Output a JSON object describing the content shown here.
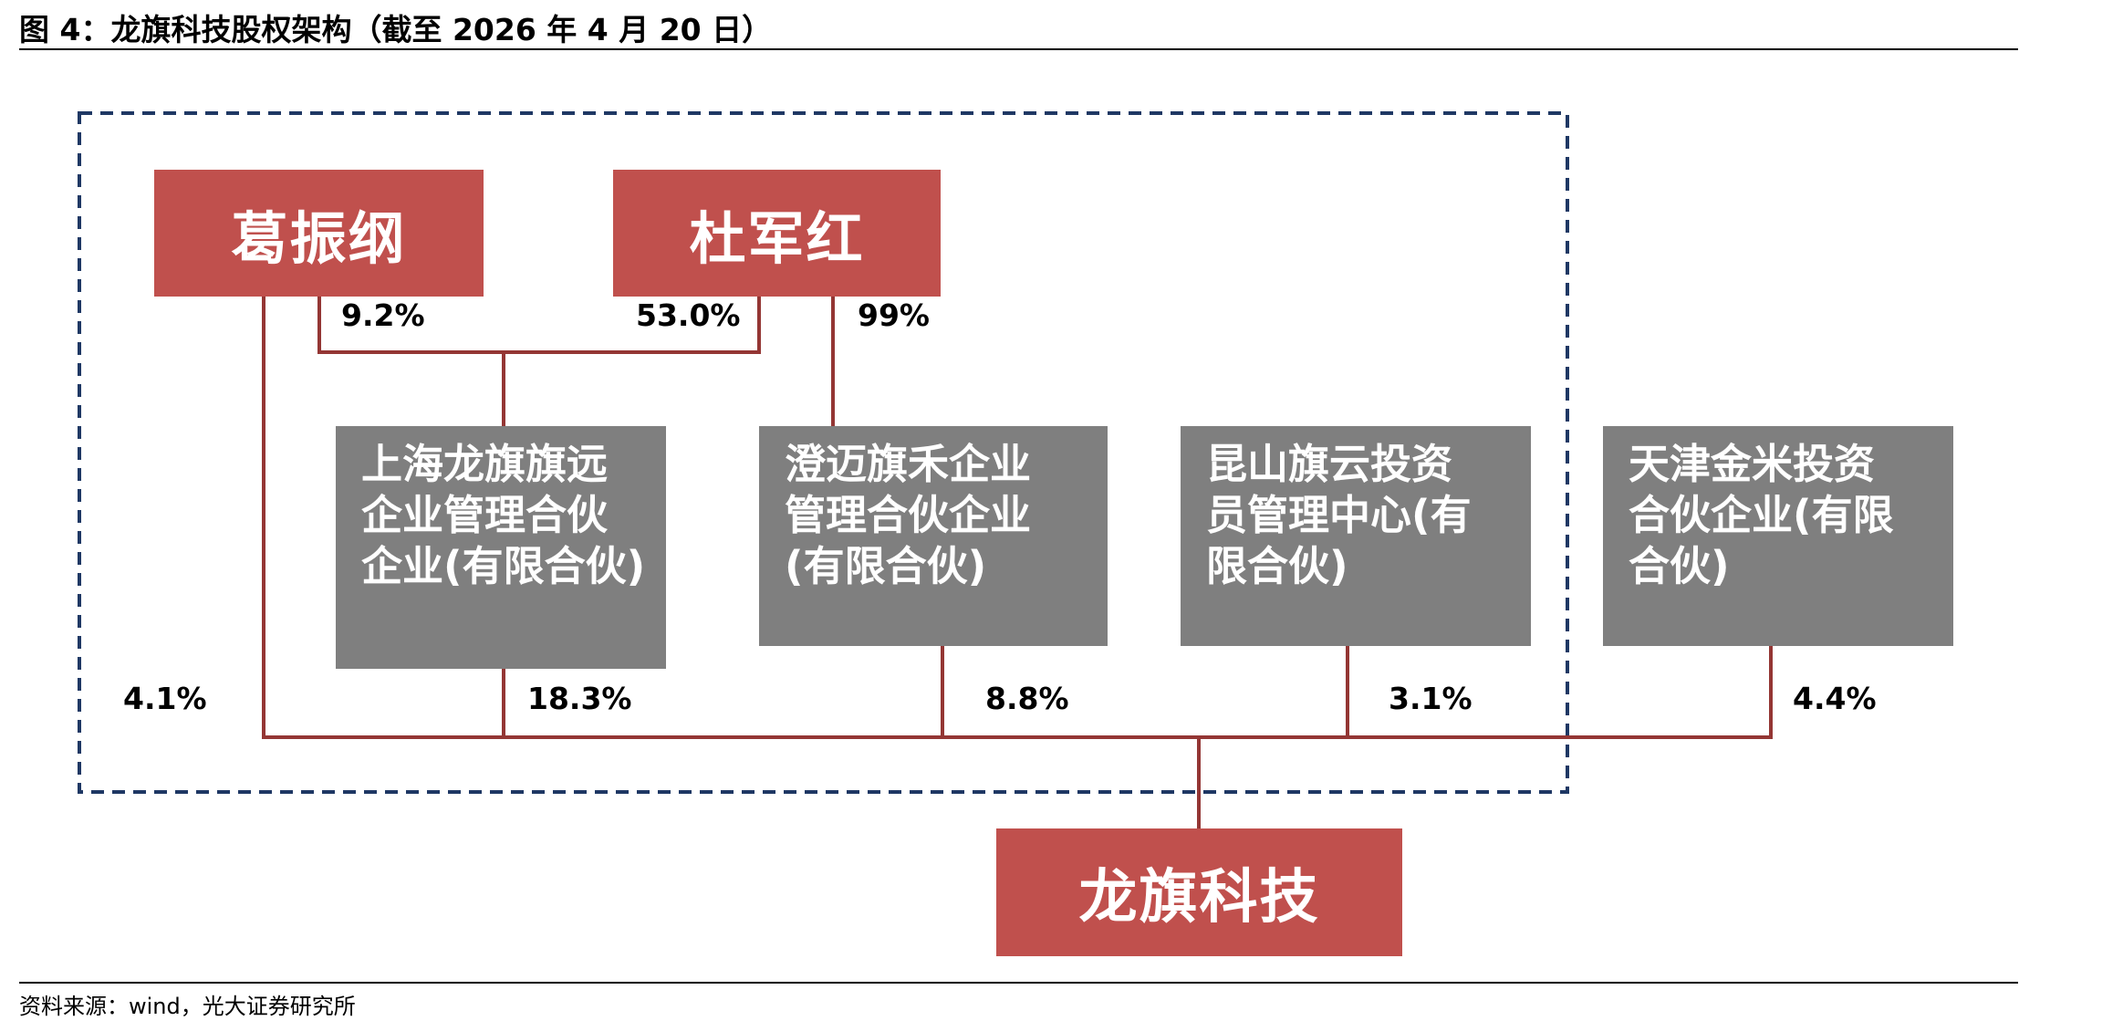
{
  "header": {
    "title": "图 4：龙旗科技股权架构（截至 2026 年 4 月 20 日）"
  },
  "nodes": [
    {
      "label": "葛振纲"
    },
    {
      "label": "杜军红"
    },
    {
      "label": "上海龙旗旗远企业管理合伙企业(有限合伙)"
    },
    {
      "label": "澄迈旗禾企业管理合伙企业(有限合伙)"
    },
    {
      "label": "昆山旗云投资员管理中心(有限合伙)"
    },
    {
      "label": "天津金米投资合伙企业(有限合伙)"
    },
    {
      "label": "龙旗科技"
    }
  ],
  "edges": [
    {
      "label": "9.2%"
    },
    {
      "label": "53.0%"
    },
    {
      "label": "99%"
    },
    {
      "label": "4.1%"
    },
    {
      "label": "18.3%"
    },
    {
      "label": "8.8%"
    },
    {
      "label": "3.1%"
    },
    {
      "label": "4.4%"
    }
  ],
  "footer": {
    "source": "资料来源：wind，光大证券研究所"
  }
}
